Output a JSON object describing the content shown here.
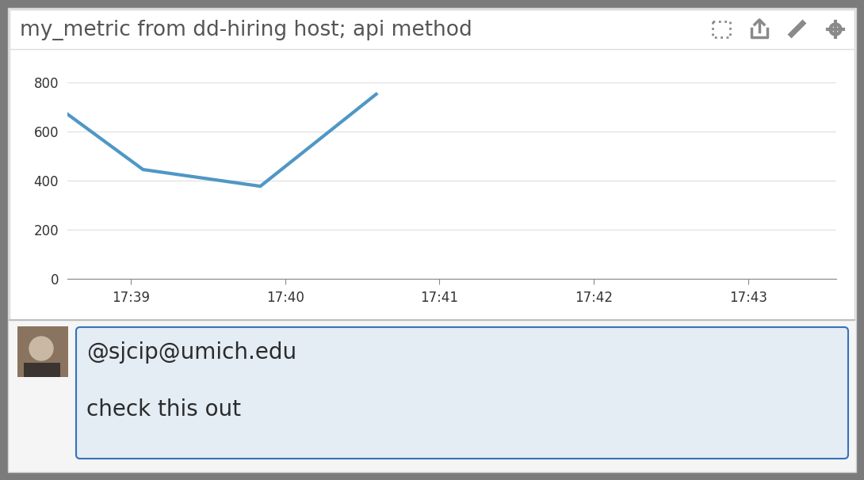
{
  "chart_data": {
    "type": "line",
    "title": "my_metric from dd-hiring host; api method",
    "x": [
      1058.59,
      1059.08,
      1059.84,
      1060.59
    ],
    "values": [
      671,
      445,
      377,
      752
    ],
    "color": "#4f97c6",
    "xlim": [
      1058.59,
      1063.57
    ],
    "xticks": [
      {
        "value": 1059,
        "label": "17:39"
      },
      {
        "value": 1060,
        "label": "17:40"
      },
      {
        "value": 1061,
        "label": "17:41"
      },
      {
        "value": 1062,
        "label": "17:42"
      },
      {
        "value": 1063,
        "label": "17:43"
      }
    ],
    "ylim": [
      0,
      800
    ],
    "yticks": [
      0,
      200,
      400,
      600,
      800
    ],
    "grid": true,
    "annotations": [
      "@sjcip@umich.edu",
      "check this out"
    ]
  }
}
